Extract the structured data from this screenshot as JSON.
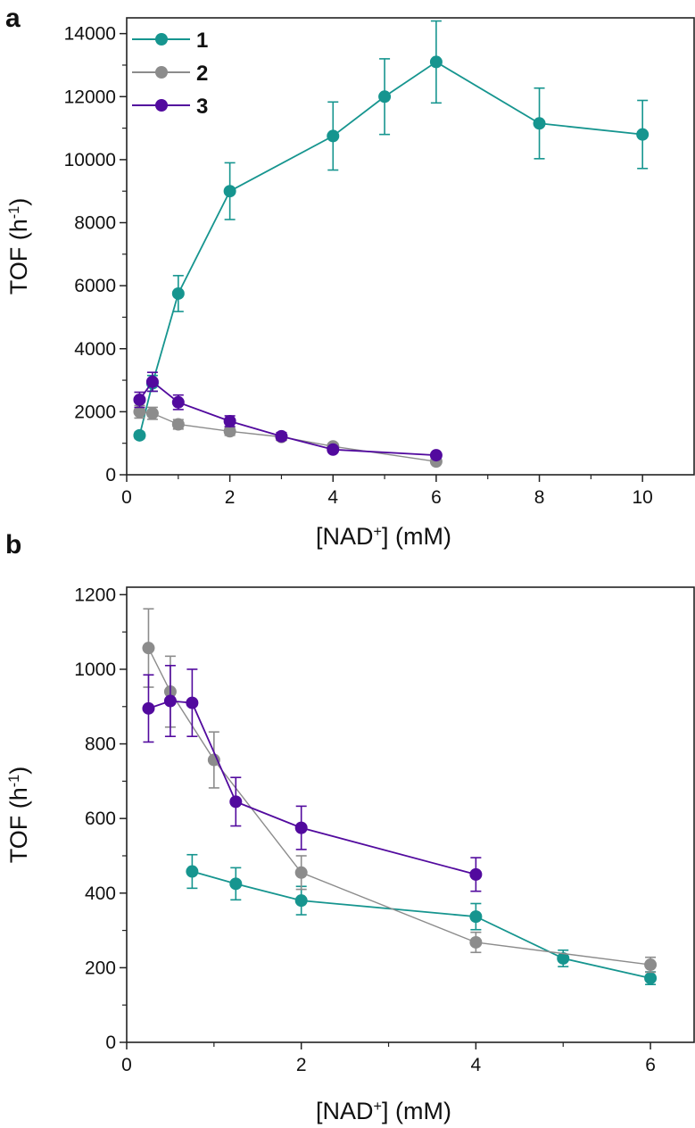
{
  "colors": {
    "1": "#16958f",
    "2": "#8c8c8c",
    "3": "#520a9e",
    "axis": "#222222"
  },
  "chart_data": [
    {
      "type": "line",
      "panel_label": "a",
      "xlabel": {
        "pre": "[NAD",
        "sup": "+",
        "post": "] (mM)"
      },
      "ylabel": {
        "pre": "TOF (h",
        "sup": "-1",
        "post": ")"
      },
      "xlim": [
        0,
        11
      ],
      "ylim": [
        0,
        14500
      ],
      "xticks": [
        0,
        2,
        4,
        6,
        8,
        10
      ],
      "xtick_labels": [
        "0",
        "2",
        "4",
        "6",
        "8",
        "10"
      ],
      "yticks": [
        0,
        2000,
        4000,
        6000,
        8000,
        10000,
        12000,
        14000
      ],
      "ytick_labels": [
        "0",
        "2000",
        "4000",
        "6000",
        "8000",
        "10000",
        "12000",
        "14000"
      ],
      "legend": {
        "placement": "top-left",
        "entries": [
          "1",
          "2",
          "3"
        ]
      },
      "series": [
        {
          "name": "1",
          "x": [
            0.25,
            0.5,
            1,
            2,
            4,
            5,
            6,
            8,
            10
          ],
          "y": [
            1250,
            2900,
            5750,
            9000,
            10750,
            12000,
            13100,
            11150,
            10800
          ],
          "err": [
            100,
            250,
            570,
            900,
            1080,
            1200,
            1300,
            1120,
            1080
          ]
        },
        {
          "name": "2",
          "x": [
            0.25,
            0.5,
            1,
            2,
            3,
            4,
            6
          ],
          "y": [
            2000,
            1950,
            1600,
            1380,
            1200,
            900,
            420
          ],
          "err": [
            200,
            190,
            150,
            130,
            110,
            90,
            40
          ]
        },
        {
          "name": "3",
          "x": [
            0.25,
            0.5,
            1,
            2,
            3,
            4,
            6
          ],
          "y": [
            2380,
            2950,
            2300,
            1700,
            1220,
            800,
            620
          ],
          "err": [
            240,
            300,
            230,
            170,
            120,
            80,
            60
          ]
        }
      ]
    },
    {
      "type": "line",
      "panel_label": "b",
      "xlabel": {
        "pre": "[NAD",
        "sup": "+",
        "post": "] (mM)"
      },
      "ylabel": {
        "pre": "TOF (h",
        "sup": "-1",
        "post": ")"
      },
      "xlim": [
        0,
        6.5
      ],
      "ylim": [
        0,
        1220
      ],
      "xticks": [
        0,
        2,
        4,
        6
      ],
      "xtick_labels": [
        "0",
        "2",
        "4",
        "6"
      ],
      "yticks": [
        0,
        200,
        400,
        600,
        800,
        1000,
        1200
      ],
      "ytick_labels": [
        "0",
        "200",
        "400",
        "600",
        "800",
        "1000",
        "1200"
      ],
      "series": [
        {
          "name": "1",
          "x": [
            0.75,
            1.25,
            2,
            4,
            5,
            6
          ],
          "y": [
            458,
            425,
            380,
            337,
            225,
            172
          ],
          "err": [
            45,
            43,
            38,
            35,
            22,
            17
          ]
        },
        {
          "name": "2",
          "x": [
            0.25,
            0.5,
            1,
            2,
            4,
            6
          ],
          "y": [
            1057,
            940,
            757,
            455,
            268,
            208
          ],
          "err": [
            105,
            95,
            75,
            45,
            27,
            20
          ]
        },
        {
          "name": "3",
          "x": [
            0.25,
            0.5,
            0.75,
            1.25,
            2,
            4
          ],
          "y": [
            895,
            915,
            910,
            645,
            575,
            450
          ],
          "err": [
            90,
            95,
            90,
            65,
            58,
            45
          ]
        }
      ]
    }
  ]
}
